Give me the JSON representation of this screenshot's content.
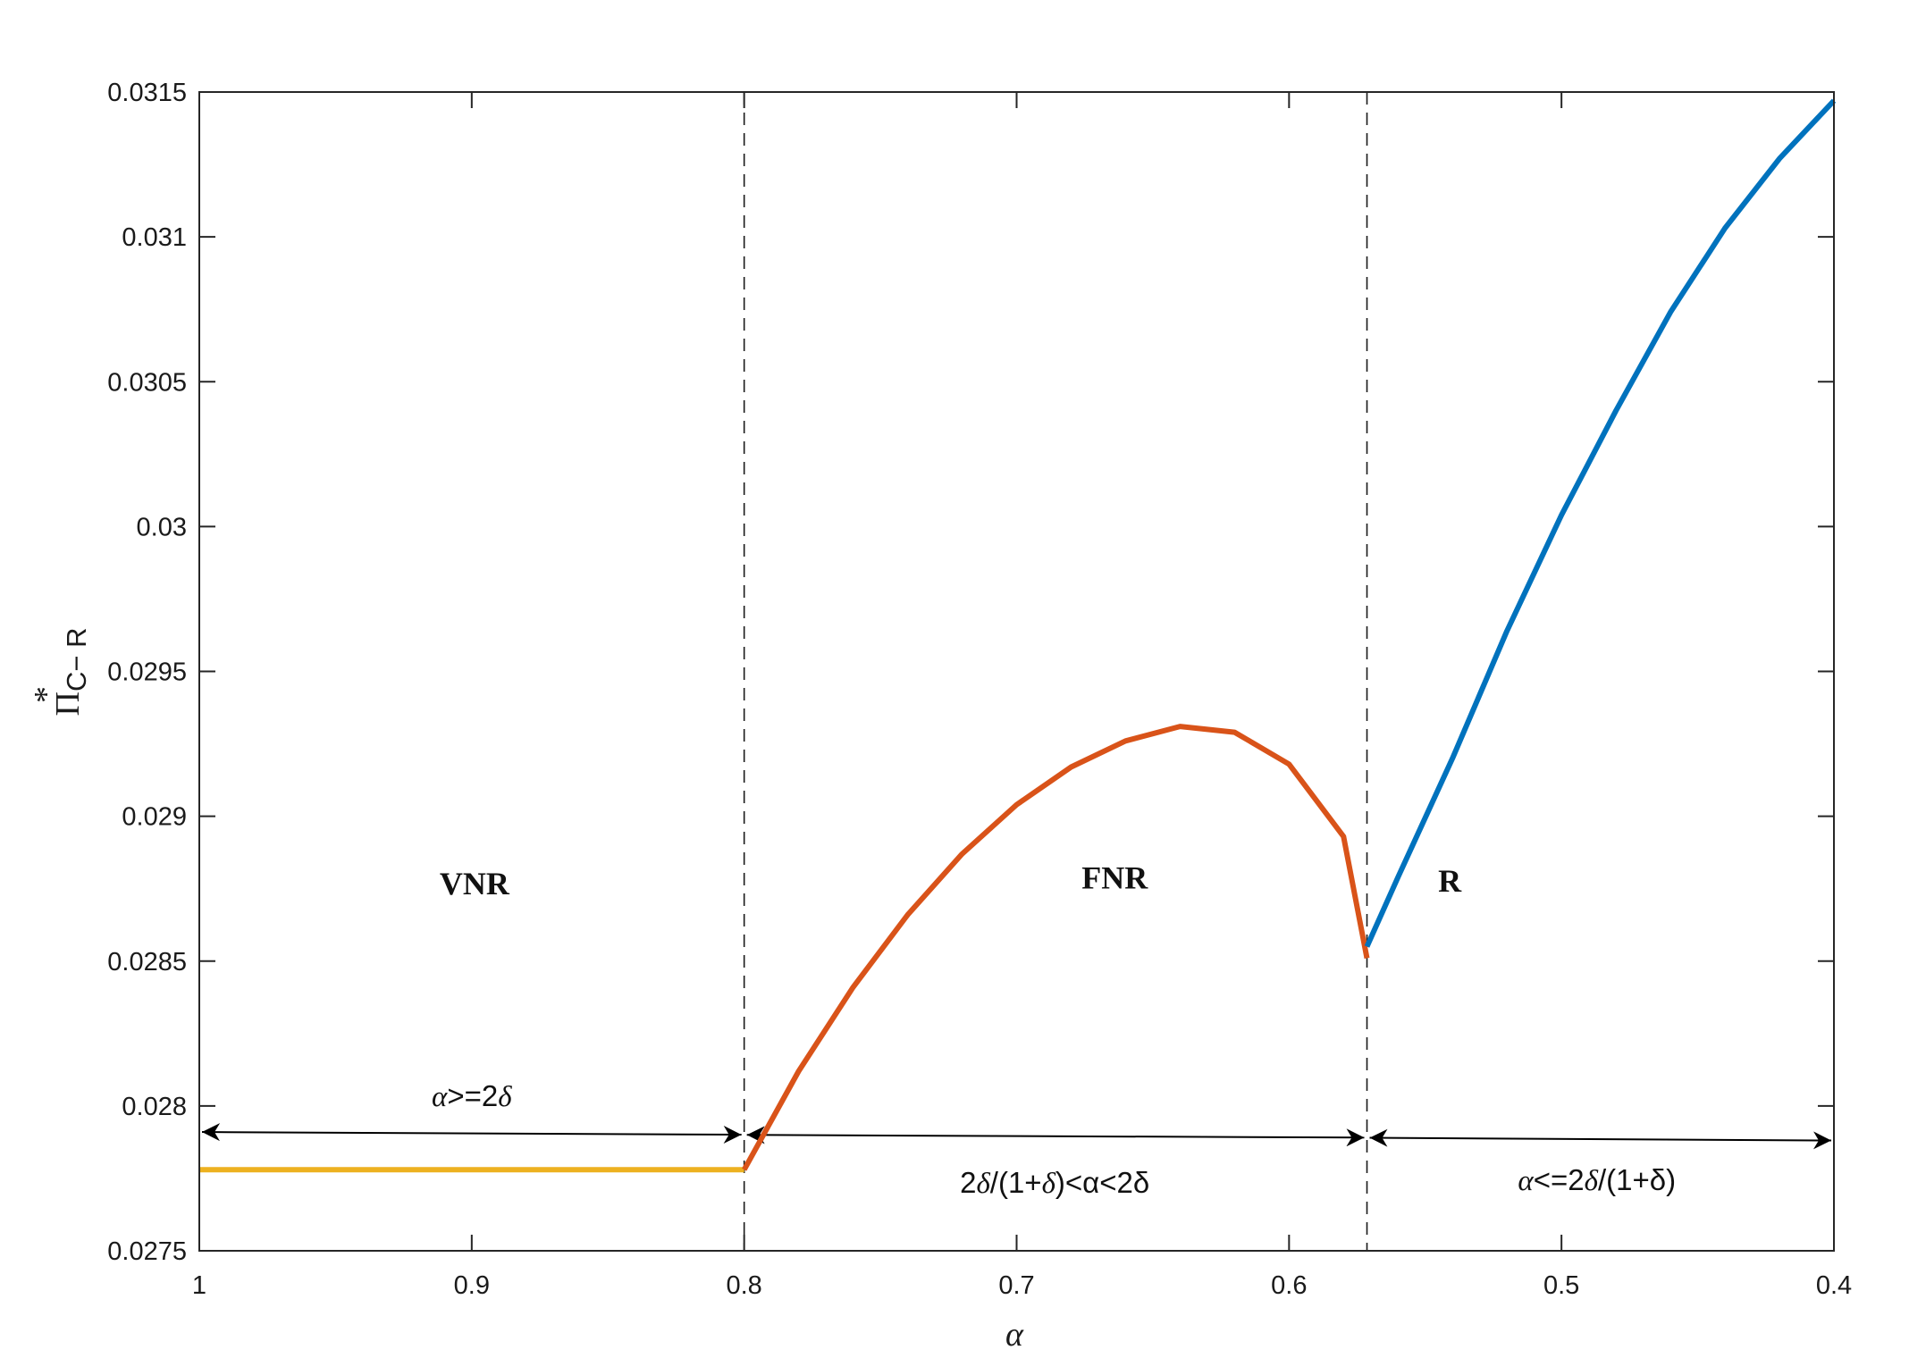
{
  "chart_data": {
    "type": "line",
    "xlabel": "α",
    "ylabel": "Π*C−R",
    "ylabel_parts": {
      "main": "Π",
      "sup": "*",
      "sub": "C− R"
    },
    "xlim": [
      1,
      0.4
    ],
    "x_reversed": true,
    "ylim": [
      0.0275,
      0.0315
    ],
    "x_ticks": [
      1,
      0.9,
      0.8,
      0.7,
      0.6,
      0.5,
      0.4
    ],
    "x_tick_labels": [
      "1",
      "0.9",
      "0.8",
      "0.7",
      "0.6",
      "0.5",
      "0.4"
    ],
    "y_ticks": [
      0.0275,
      0.028,
      0.0285,
      0.029,
      0.0295,
      0.03,
      0.0305,
      0.031,
      0.0315
    ],
    "y_tick_labels": [
      "0.0275",
      "0.028",
      "0.0285",
      "0.029",
      "0.0295",
      "0.03",
      "0.0305",
      "0.031",
      "0.0315"
    ],
    "grid": false,
    "boundaries": [
      0.8,
      0.5714
    ],
    "series": [
      {
        "color": "#EDB120",
        "x": [
          1.0,
          0.9,
          0.8
        ],
        "y": [
          0.02778,
          0.02778,
          0.02778
        ]
      },
      {
        "color": "#D95319",
        "x": [
          0.8,
          0.78,
          0.76,
          0.74,
          0.72,
          0.7,
          0.68,
          0.66,
          0.64,
          0.62,
          0.6,
          0.58,
          0.5714
        ],
        "y": [
          0.02778,
          0.02812,
          0.02841,
          0.02866,
          0.02887,
          0.02904,
          0.02917,
          0.02926,
          0.02931,
          0.02929,
          0.02918,
          0.02893,
          0.02851
        ]
      },
      {
        "color": "#0072BD",
        "x": [
          0.5714,
          0.56,
          0.54,
          0.52,
          0.5,
          0.48,
          0.46,
          0.44,
          0.42,
          0.4
        ],
        "y": [
          0.02855,
          0.02879,
          0.0292,
          0.02964,
          0.03004,
          0.0304,
          0.03074,
          0.03103,
          0.03127,
          0.03147
        ]
      }
    ],
    "region_labels": [
      {
        "text": "VNR",
        "x": 0.899,
        "y": 0.02873
      },
      {
        "text": "FNR",
        "x": 0.664,
        "y": 0.02875
      },
      {
        "text": "R",
        "x": 0.541,
        "y": 0.02874
      }
    ],
    "ranges": [
      {
        "x1": 1.0,
        "x2": 0.8,
        "y": 0.02791,
        "label_a": "α",
        "label_b": ">=2",
        "label_c": "δ",
        "label_d": "",
        "label_e": "",
        "label_x": 0.9,
        "label_y": 0.028
      },
      {
        "x1": 0.8,
        "x2": 0.5714,
        "y": 0.0279,
        "label_a": "2",
        "label_b": "δ",
        "label_c": "/(1+",
        "label_d": "δ",
        "label_e": ")<α<2δ",
        "label_x": 0.686,
        "label_y": 0.0277
      },
      {
        "x1": 0.5714,
        "x2": 0.4,
        "y": 0.02789,
        "label_a": "α",
        "label_b": "<=2",
        "label_c": "δ",
        "label_d": "/(1+",
        "label_e": "δ)",
        "label_x": 0.487,
        "label_y": 0.02771
      }
    ]
  }
}
